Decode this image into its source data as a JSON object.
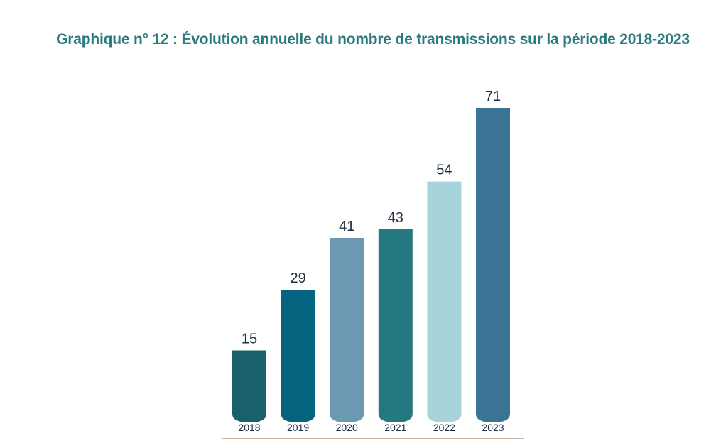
{
  "chart_data": {
    "type": "bar",
    "title": "Graphique n° 12 : Évolution annuelle du nombre de transmissions sur la période 2018-2023",
    "xlabel": "",
    "ylabel": "",
    "categories": [
      "2018",
      "2019",
      "2020",
      "2021",
      "2022",
      "2023"
    ],
    "values": [
      15,
      29,
      41,
      43,
      54,
      71
    ],
    "value_labels": [
      "15",
      "29",
      "41",
      "43",
      "54",
      "71"
    ],
    "ylim": [
      0,
      71
    ],
    "grid": false,
    "legend": "none",
    "bar_colors": [
      "#18606c",
      "#04637f",
      "#6c98b1",
      "#23797f",
      "#a7d3da",
      "#397494"
    ],
    "baseline_color": "#b59b86",
    "label_color": "#1f2f45",
    "title_color": "#2a7b80"
  }
}
